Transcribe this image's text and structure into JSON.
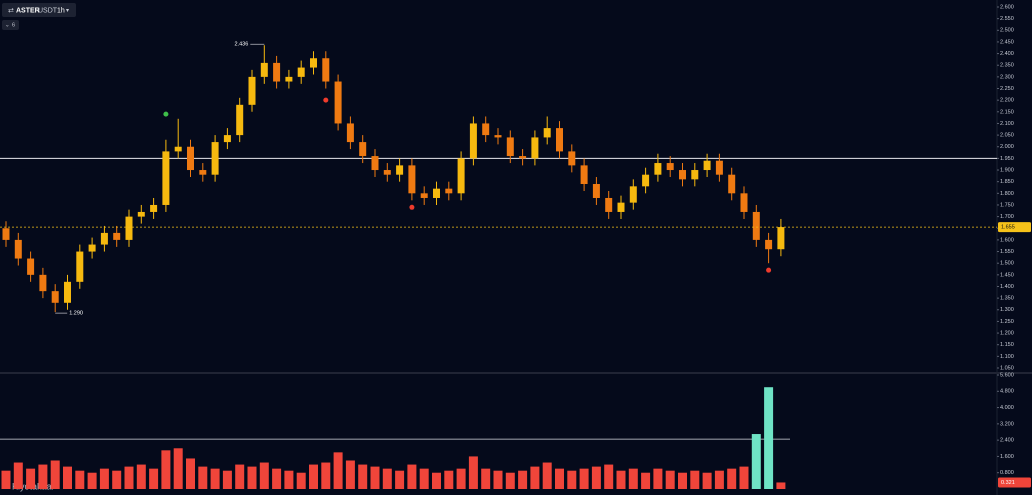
{
  "header": {
    "symbol": "ASTER",
    "quote": "USDT",
    "interval": "1h",
    "indicator_count": "6"
  },
  "watermark": "Kiyotakaai",
  "chart_data": [
    {
      "type": "candlestick",
      "open": [
        1.65,
        1.6,
        1.52,
        1.45,
        1.38,
        1.33,
        1.42,
        1.55,
        1.58,
        1.63,
        1.6,
        1.7,
        1.72,
        1.75,
        1.98,
        2.0,
        1.9,
        1.88,
        2.02,
        2.05,
        2.18,
        2.3,
        2.36,
        2.28,
        2.3,
        2.34,
        2.38,
        2.28,
        2.1,
        2.02,
        1.96,
        1.9,
        1.88,
        1.92,
        1.8,
        1.78,
        1.82,
        1.8,
        1.95,
        2.1,
        2.05,
        2.04,
        1.96,
        1.95,
        2.04,
        2.08,
        1.98,
        1.92,
        1.84,
        1.78,
        1.72,
        1.76,
        1.83,
        1.88,
        1.93,
        1.9,
        1.86,
        1.9,
        1.94,
        1.88,
        1.8,
        1.72,
        1.6,
        1.56
      ],
      "high": [
        1.68,
        1.63,
        1.55,
        1.48,
        1.41,
        1.45,
        1.58,
        1.61,
        1.66,
        1.66,
        1.73,
        1.75,
        1.78,
        2.03,
        2.12,
        2.03,
        1.93,
        2.05,
        2.08,
        2.21,
        2.33,
        2.436,
        2.39,
        2.33,
        2.37,
        2.41,
        2.41,
        2.31,
        2.13,
        2.05,
        1.99,
        1.93,
        1.95,
        1.95,
        1.83,
        1.85,
        1.85,
        1.98,
        2.13,
        2.13,
        2.08,
        2.07,
        1.99,
        2.07,
        2.13,
        2.11,
        2.01,
        1.95,
        1.87,
        1.81,
        1.79,
        1.86,
        1.91,
        1.97,
        1.96,
        1.93,
        1.93,
        1.97,
        1.97,
        1.91,
        1.83,
        1.75,
        1.63,
        1.69
      ],
      "low": [
        1.57,
        1.49,
        1.42,
        1.35,
        1.29,
        1.3,
        1.39,
        1.52,
        1.55,
        1.57,
        1.57,
        1.67,
        1.69,
        1.72,
        1.95,
        1.87,
        1.85,
        1.85,
        1.99,
        2.02,
        2.15,
        2.27,
        2.25,
        2.25,
        2.27,
        2.31,
        2.25,
        2.07,
        1.99,
        1.93,
        1.87,
        1.85,
        1.85,
        1.77,
        1.75,
        1.75,
        1.77,
        1.77,
        1.92,
        2.02,
        2.01,
        1.93,
        1.92,
        1.92,
        2.01,
        1.95,
        1.89,
        1.81,
        1.75,
        1.69,
        1.69,
        1.73,
        1.8,
        1.85,
        1.87,
        1.83,
        1.83,
        1.87,
        1.85,
        1.77,
        1.69,
        1.57,
        1.5,
        1.53
      ],
      "close": [
        1.6,
        1.52,
        1.45,
        1.38,
        1.33,
        1.42,
        1.55,
        1.58,
        1.63,
        1.6,
        1.7,
        1.72,
        1.75,
        1.98,
        2.0,
        1.9,
        1.88,
        2.02,
        2.05,
        2.18,
        2.3,
        2.36,
        2.28,
        2.3,
        2.34,
        2.38,
        2.28,
        2.1,
        2.02,
        1.96,
        1.9,
        1.88,
        1.92,
        1.8,
        1.78,
        1.82,
        1.8,
        1.95,
        2.1,
        2.05,
        2.04,
        1.96,
        1.95,
        2.04,
        2.08,
        1.98,
        1.92,
        1.84,
        1.78,
        1.72,
        1.76,
        1.83,
        1.88,
        1.93,
        1.9,
        1.86,
        1.9,
        1.94,
        1.88,
        1.8,
        1.72,
        1.6,
        1.56,
        1.655
      ],
      "up_color": "#f6b90f",
      "down_color": "#ef7a12",
      "price_tag_color": "#f6c21a",
      "ylim": [
        1.05,
        2.6
      ],
      "yticks": [
        {
          "value": 1.05,
          "label": "1.050"
        },
        {
          "value": 1.1,
          "label": "1.100"
        },
        {
          "value": 1.15,
          "label": "1.150"
        },
        {
          "value": 1.2,
          "label": "1.200"
        },
        {
          "value": 1.25,
          "label": "1.250"
        },
        {
          "value": 1.3,
          "label": "1.300"
        },
        {
          "value": 1.35,
          "label": "1.350"
        },
        {
          "value": 1.4,
          "label": "1.400"
        },
        {
          "value": 1.45,
          "label": "1.450"
        },
        {
          "value": 1.5,
          "label": "1.500"
        },
        {
          "value": 1.55,
          "label": "1.550"
        },
        {
          "value": 1.6,
          "label": "1.600"
        },
        {
          "value": 1.65,
          "label": "1.650"
        },
        {
          "value": 1.7,
          "label": "1.700"
        },
        {
          "value": 1.75,
          "label": "1.750"
        },
        {
          "value": 1.8,
          "label": "1.800"
        },
        {
          "value": 1.85,
          "label": "1.850"
        },
        {
          "value": 1.9,
          "label": "1.900"
        },
        {
          "value": 1.95,
          "label": "1.950"
        },
        {
          "value": 2.0,
          "label": "2.000"
        },
        {
          "value": 2.05,
          "label": "2.050"
        },
        {
          "value": 2.1,
          "label": "2.100"
        },
        {
          "value": 2.15,
          "label": "2.150"
        },
        {
          "value": 2.2,
          "label": "2.200"
        },
        {
          "value": 2.25,
          "label": "2.250"
        },
        {
          "value": 2.3,
          "label": "2.300"
        },
        {
          "value": 2.35,
          "label": "2.350"
        },
        {
          "value": 2.4,
          "label": "2.400"
        },
        {
          "value": 2.45,
          "label": "2.450"
        },
        {
          "value": 2.5,
          "label": "2.500"
        },
        {
          "value": 2.55,
          "label": "2.550"
        },
        {
          "value": 2.6,
          "label": "2.600"
        }
      ],
      "hline": 1.95,
      "high_label": "2.436",
      "low_label": "1.290",
      "markers": [
        {
          "index": 13,
          "price": 2.14,
          "color": "#3fbf4a"
        },
        {
          "index": 26,
          "price": 2.2,
          "color": "#ef3b2c"
        },
        {
          "index": 33,
          "price": 1.74,
          "color": "#ef3b2c"
        },
        {
          "index": 62,
          "price": 1.47,
          "color": "#ef3b2c"
        }
      ]
    },
    {
      "type": "bar",
      "values": [
        0.9,
        1.3,
        1.0,
        1.2,
        1.4,
        1.1,
        0.9,
        0.8,
        1.0,
        0.9,
        1.1,
        1.2,
        1.0,
        1.9,
        2.0,
        1.5,
        1.1,
        1.0,
        0.9,
        1.2,
        1.1,
        1.3,
        1.0,
        0.9,
        0.8,
        1.2,
        1.3,
        1.8,
        1.4,
        1.2,
        1.1,
        1.0,
        0.9,
        1.2,
        1.0,
        0.8,
        0.9,
        1.0,
        1.6,
        1.0,
        0.9,
        0.8,
        0.9,
        1.1,
        1.3,
        1.0,
        0.9,
        1.0,
        1.1,
        1.2,
        0.9,
        1.0,
        0.8,
        1.0,
        0.9,
        0.8,
        0.9,
        0.8,
        0.9,
        1.0,
        1.1,
        2.7,
        5.0,
        0.321
      ],
      "color": "#f0453a",
      "highlight_color": "#6fe3c5",
      "threshold": 2.45,
      "ylim": [
        0,
        5.6
      ],
      "yticks": [
        {
          "value": 0.8,
          "label": "0.800"
        },
        {
          "value": 1.6,
          "label": "1.600"
        },
        {
          "value": 2.4,
          "label": "2.400"
        },
        {
          "value": 3.2,
          "label": "3.200"
        },
        {
          "value": 4.0,
          "label": "4.000"
        },
        {
          "value": 4.8,
          "label": "4.800"
        },
        {
          "value": 5.6,
          "label": "5.600"
        }
      ]
    }
  ]
}
